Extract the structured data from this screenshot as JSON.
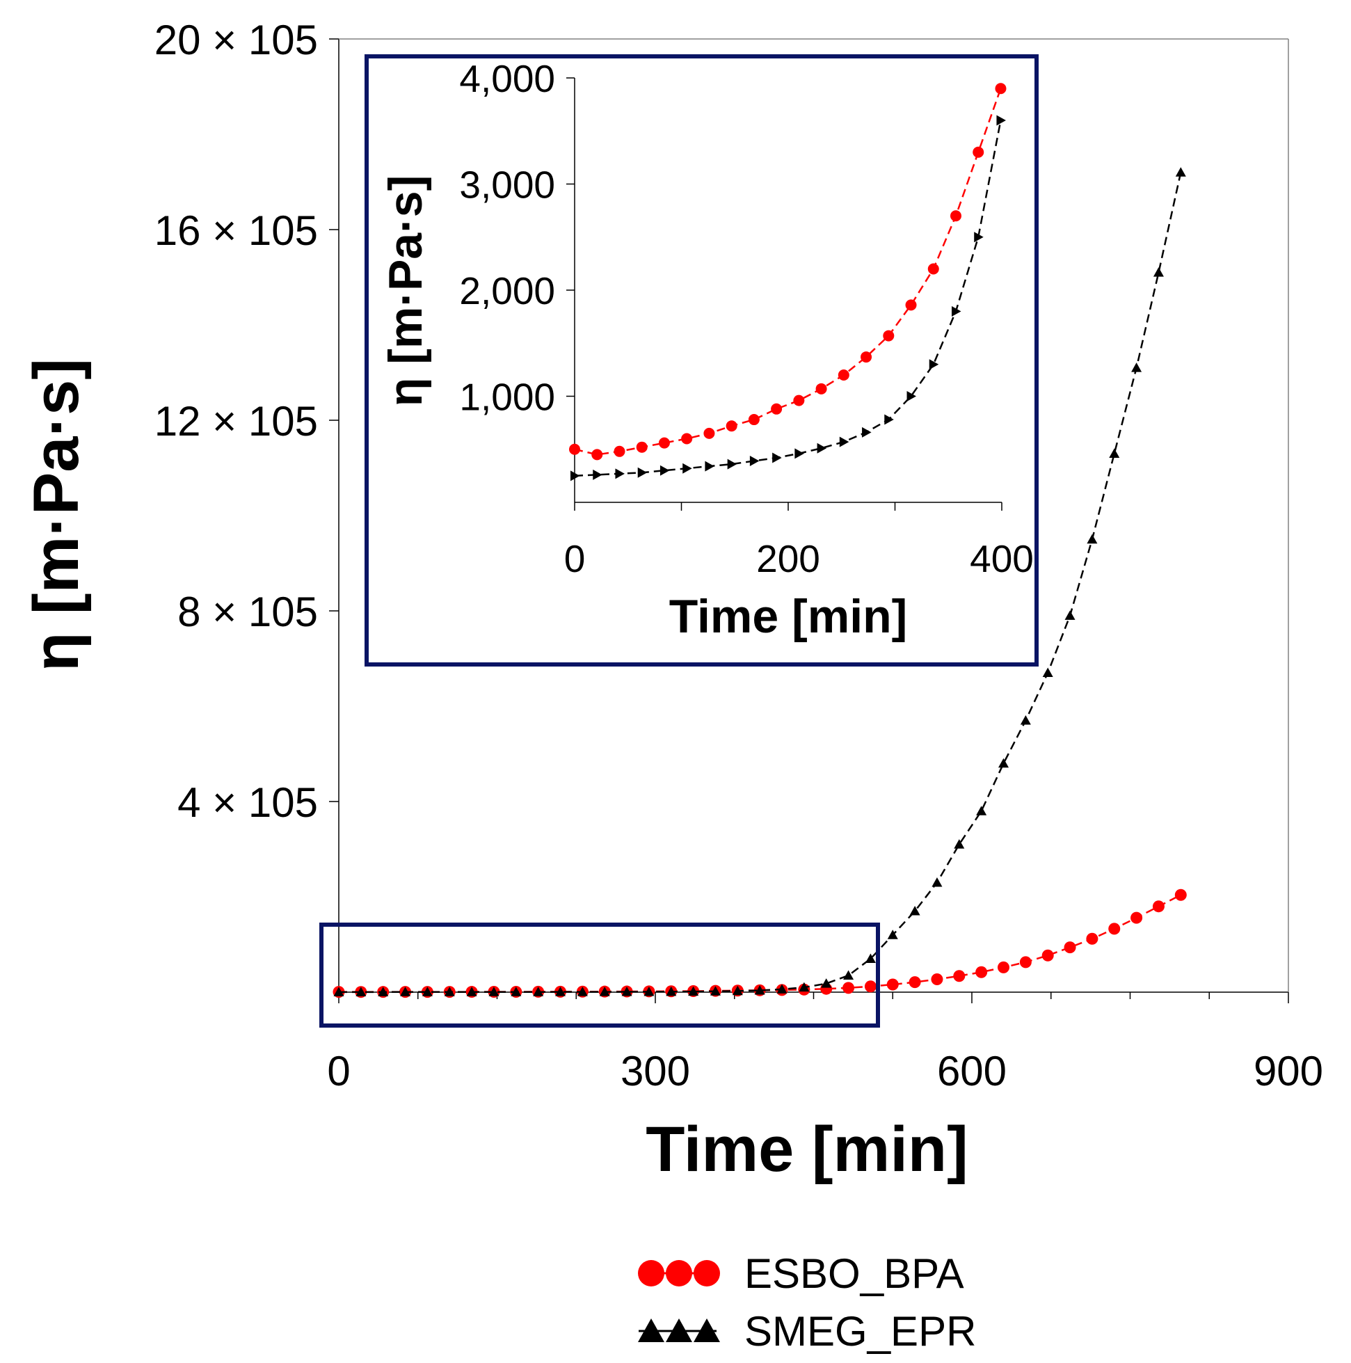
{
  "chart_data": [
    {
      "id": "main",
      "type": "line",
      "xlabel": "Time [min]",
      "ylabel": "η [m·Pa·s]",
      "xlim": [
        0,
        900
      ],
      "ylim": [
        0,
        2000000
      ],
      "xticks": [
        0,
        300,
        600,
        900
      ],
      "xtick_labels": [
        "0",
        "300",
        "600",
        "900"
      ],
      "yticks": [
        400000,
        800000,
        1200000,
        1600000,
        2000000
      ],
      "ytick_labels": [
        "4 × 105",
        "8 × 105",
        "12 × 105",
        "16 × 105",
        "20 × 105"
      ],
      "grid": false,
      "series": [
        {
          "name": "ESBO_BPA",
          "color": "#ff0000",
          "marker": "circle",
          "x": [
            0,
            21,
            42,
            63,
            84,
            105,
            126,
            147,
            168,
            189,
            210,
            231,
            252,
            273,
            294,
            315,
            336,
            357,
            378,
            399,
            420,
            441,
            462,
            483,
            504,
            525,
            546,
            567,
            588,
            609,
            630,
            651,
            672,
            693,
            714,
            735,
            756,
            777,
            798
          ],
          "y": [
            500,
            450,
            480,
            520,
            560,
            600,
            650,
            720,
            780,
            880,
            960,
            1070,
            1200,
            1370,
            1570,
            1860,
            2200,
            2700,
            3300,
            3900,
            4600,
            5500,
            7000,
            9000,
            12000,
            16000,
            21000,
            27000,
            34000,
            42000,
            52000,
            63000,
            77000,
            94000,
            112000,
            133000,
            156000,
            180000,
            204000
          ]
        },
        {
          "name": "SMEG_EPR",
          "color": "#000000",
          "marker": "triangle",
          "x": [
            0,
            21,
            42,
            63,
            84,
            105,
            126,
            147,
            168,
            189,
            210,
            231,
            252,
            273,
            294,
            315,
            336,
            357,
            378,
            399,
            420,
            441,
            462,
            483,
            504,
            525,
            546,
            567,
            588,
            609,
            630,
            651,
            672,
            693,
            714,
            735,
            756,
            777,
            798
          ],
          "y": [
            250,
            260,
            270,
            280,
            300,
            320,
            340,
            360,
            390,
            420,
            460,
            510,
            570,
            660,
            780,
            1000,
            1300,
            1800,
            2500,
            3600,
            6000,
            10000,
            18000,
            35000,
            70000,
            120000,
            170000,
            230000,
            310000,
            380000,
            480000,
            570000,
            670000,
            790000,
            950000,
            1130000,
            1310000,
            1510000,
            1720000
          ]
        }
      ],
      "legend": {
        "position": "bottom-center",
        "entries": [
          "ESBO_BPA",
          "SMEG_EPR"
        ]
      },
      "annotations": [
        "zoom box around 0–500 min region shown in inset"
      ]
    },
    {
      "id": "inset",
      "type": "line",
      "xlabel": "Time [min]",
      "ylabel": "η [m·Pa·s]",
      "xlim": [
        0,
        400
      ],
      "ylim": [
        0,
        4000
      ],
      "xticks": [
        0,
        200,
        400
      ],
      "xtick_labels": [
        "0",
        "200",
        "400"
      ],
      "yticks": [
        1000,
        2000,
        3000,
        4000
      ],
      "ytick_labels": [
        "1,000",
        "2,000",
        "3,000",
        "4,000"
      ],
      "grid": false,
      "series": [
        {
          "name": "ESBO_BPA",
          "color": "#ff0000",
          "marker": "circle",
          "x": [
            0,
            21,
            42,
            63,
            84,
            105,
            126,
            147,
            168,
            189,
            210,
            231,
            252,
            273,
            294,
            315,
            336,
            357,
            378,
            399
          ],
          "y": [
            500,
            450,
            480,
            520,
            560,
            600,
            650,
            720,
            780,
            880,
            960,
            1070,
            1200,
            1370,
            1570,
            1860,
            2200,
            2700,
            3300,
            3900
          ]
        },
        {
          "name": "SMEG_EPR",
          "color": "#000000",
          "marker": "triangle-right",
          "x": [
            0,
            21,
            42,
            63,
            84,
            105,
            126,
            147,
            168,
            189,
            210,
            231,
            252,
            273,
            294,
            315,
            336,
            357,
            378,
            399
          ],
          "y": [
            250,
            260,
            270,
            280,
            300,
            320,
            340,
            360,
            390,
            420,
            460,
            510,
            570,
            660,
            780,
            1000,
            1300,
            1800,
            2500,
            3600
          ]
        }
      ]
    }
  ]
}
